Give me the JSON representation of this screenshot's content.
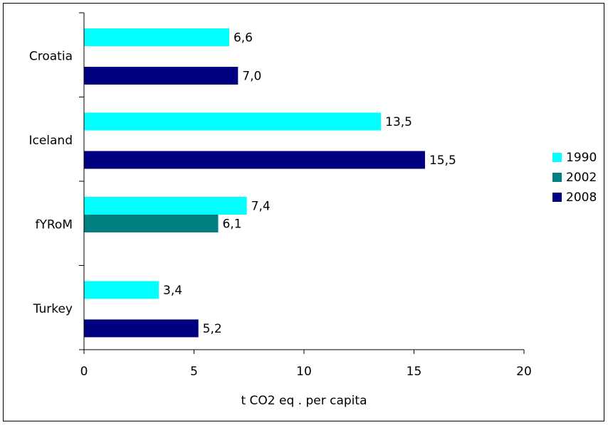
{
  "chart_data": {
    "type": "bar",
    "orientation": "horizontal",
    "title": "",
    "xlabel": "t CO2 eq . per capita",
    "ylabel": "",
    "xlim": [
      0,
      20
    ],
    "xticks": [
      "0",
      "5",
      "10",
      "15",
      "20"
    ],
    "grid": false,
    "legend": "right",
    "categories": [
      "Croatia",
      "Iceland",
      "fYRoM",
      "Turkey"
    ],
    "series": [
      {
        "name": "1990",
        "color": "#00ffff",
        "values": [
          6.6,
          13.5,
          7.4,
          3.4
        ],
        "labels": [
          "6,6",
          "13,5",
          "7,4",
          "3,4"
        ]
      },
      {
        "name": "2002",
        "color": "#008080",
        "values": [
          null,
          null,
          6.1,
          null
        ],
        "labels": [
          "",
          "",
          "6,1",
          ""
        ]
      },
      {
        "name": "2008",
        "color": "#000080",
        "values": [
          7.0,
          15.5,
          null,
          5.2
        ],
        "labels": [
          "7,0",
          "15,5",
          "",
          "5,2"
        ]
      }
    ]
  }
}
